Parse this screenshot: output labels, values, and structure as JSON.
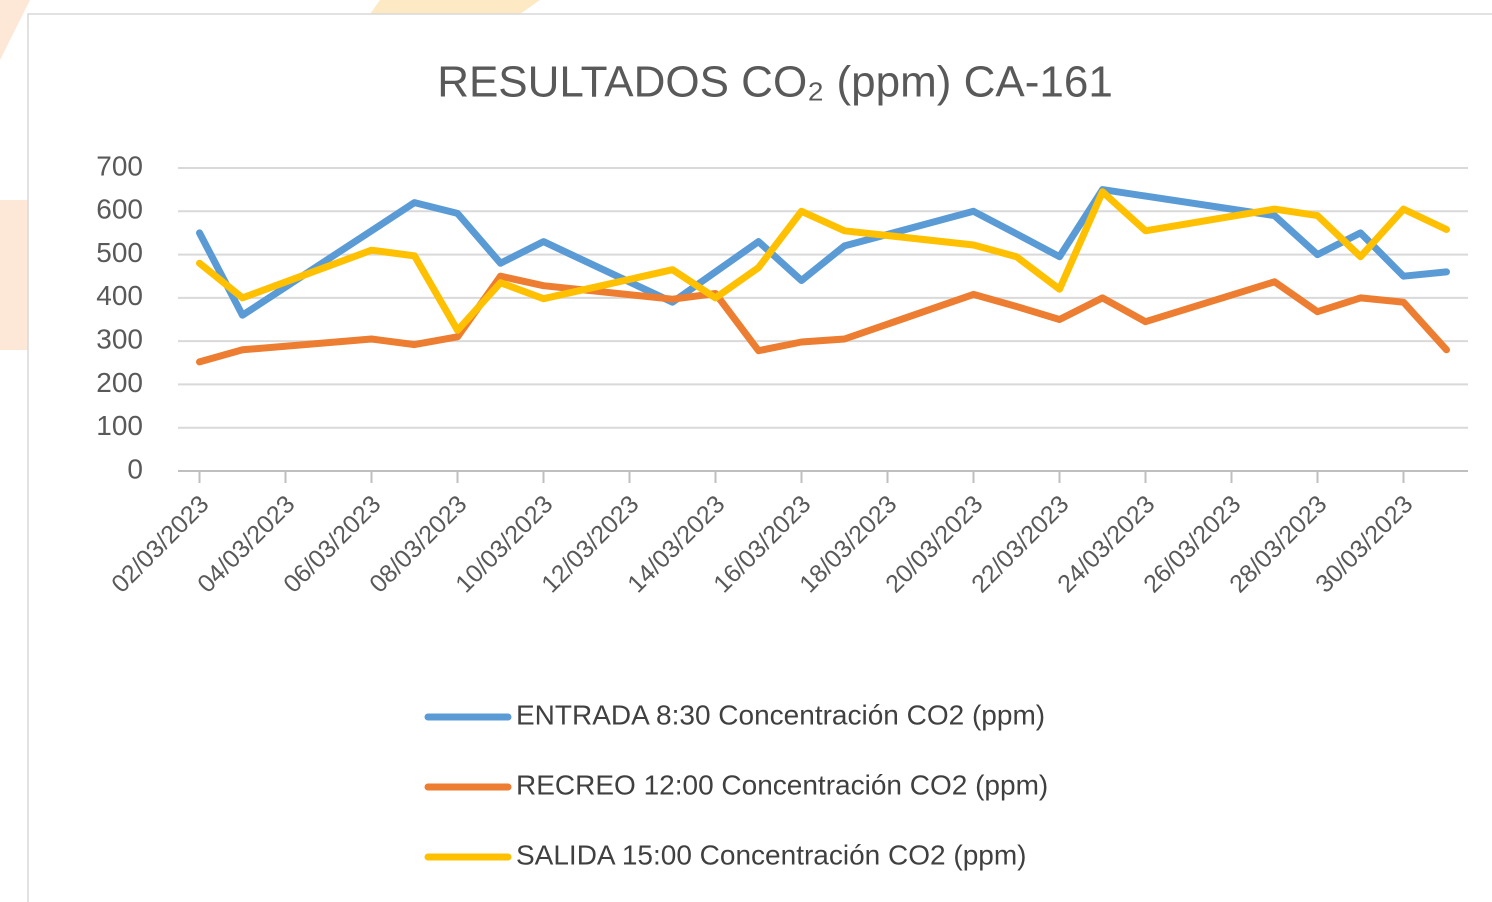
{
  "chart_data": {
    "type": "line",
    "title": "RESULTADOS CO₂ (ppm)  CA-161",
    "x": [
      "02/03/2023",
      "03/03/2023",
      "06/03/2023",
      "07/03/2023",
      "08/03/2023",
      "09/03/2023",
      "10/03/2023",
      "13/03/2023",
      "14/03/2023",
      "15/03/2023",
      "16/03/2023",
      "17/03/2023",
      "20/03/2023",
      "21/03/2023",
      "22/03/2023",
      "23/03/2023",
      "24/03/2023",
      "27/03/2023",
      "28/03/2023",
      "29/03/2023",
      "30/03/2023",
      "31/03/2023"
    ],
    "series": [
      {
        "name": "ENTRADA 8:30 Concentración CO2 (ppm)",
        "color": "#5b9bd5",
        "values": [
          550,
          360,
          555,
          620,
          595,
          480,
          530,
          390,
          460,
          530,
          440,
          520,
          600,
          548,
          495,
          650,
          635,
          590,
          500,
          550,
          450,
          460
        ]
      },
      {
        "name": "RECREO 12:00 Concentración CO2 (ppm)",
        "color": "#ed7d31",
        "values": [
          252,
          280,
          305,
          292,
          310,
          450,
          428,
          397,
          410,
          278,
          298,
          305,
          408,
          380,
          350,
          400,
          345,
          437,
          368,
          400,
          390,
          280
        ]
      },
      {
        "name": "SALIDA 15:00 Concentración CO2 (ppm)",
        "color": "#ffc000",
        "values": [
          480,
          400,
          510,
          497,
          325,
          435,
          398,
          465,
          400,
          470,
          600,
          555,
          522,
          495,
          420,
          645,
          555,
          605,
          590,
          495,
          605,
          558
        ]
      }
    ],
    "xlim": [
      "02/03/2023",
      "31/03/2023"
    ],
    "xticks": [
      "02/03/2023",
      "04/03/2023",
      "06/03/2023",
      "08/03/2023",
      "10/03/2023",
      "12/03/2023",
      "14/03/2023",
      "16/03/2023",
      "18/03/2023",
      "20/03/2023",
      "22/03/2023",
      "24/03/2023",
      "26/03/2023",
      "28/03/2023",
      "30/03/2023"
    ],
    "ylim": [
      0,
      700
    ],
    "yticks": [
      0,
      100,
      200,
      300,
      400,
      500,
      600,
      700
    ],
    "grid": true,
    "legend": "bottom"
  }
}
